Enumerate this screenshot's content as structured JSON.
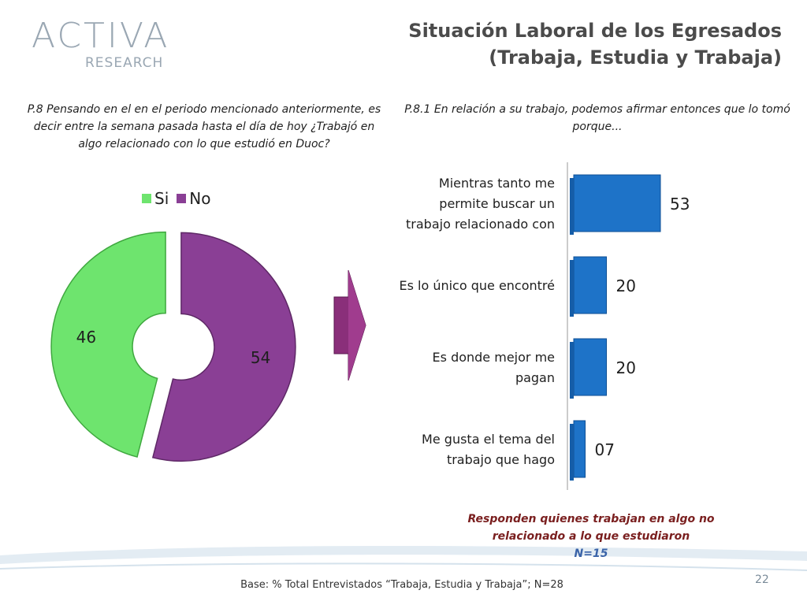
{
  "logo": {
    "main": "ACTIVA",
    "sub": "RESEARCH"
  },
  "title": {
    "line1": "Situación Laboral de los Egresados",
    "line2": "(Trabaja, Estudia y Trabaja)"
  },
  "left_question": "P.8 Pensando en el en el periodo mencionado anteriormente, es decir entre la semana pasada hasta el día de hoy ¿Trabajó en algo relacionado con lo que estudió en Duoc?",
  "right_question": "P.8.1 En relación a su trabajo, podemos afirmar entonces que lo tomó porque...",
  "note": {
    "text": "Responden quienes trabajan en algo no relacionado a lo que estudiaron",
    "n": "N=15"
  },
  "base": "Base: % Total Entrevistados “Trabaja, Estudia y Trabaja”; N=28",
  "page_number": "22",
  "colors": {
    "green": "#6ee46e",
    "purple": "#8a3f95",
    "blue": "#1e73c8",
    "arrow": "#8a2f7a"
  },
  "chart_data": [
    {
      "type": "pie",
      "subtype": "donut",
      "categories": [
        "Si",
        "No"
      ],
      "values": [
        46,
        54
      ],
      "labels": [
        "46",
        "54"
      ],
      "legend": "top"
    },
    {
      "type": "bar",
      "orientation": "horizontal",
      "categories": [
        "Mientras tanto me permite buscar un trabajo relacionado con",
        "Es lo único que encontré",
        "Es donde mejor me pagan",
        "Me gusta el tema del trabajo que hago"
      ],
      "category_lines": [
        [
          "Mientras tanto me",
          "permite buscar un",
          "trabajo relacionado con"
        ],
        [
          "Es lo único que encontré"
        ],
        [
          "Es donde mejor me",
          "pagan"
        ],
        [
          "Me gusta el tema del",
          "trabajo que hago"
        ]
      ],
      "values": [
        53,
        20,
        20,
        7
      ],
      "labels": [
        "53",
        "20",
        "20",
        "07"
      ],
      "xlim": [
        0,
        100
      ]
    }
  ]
}
